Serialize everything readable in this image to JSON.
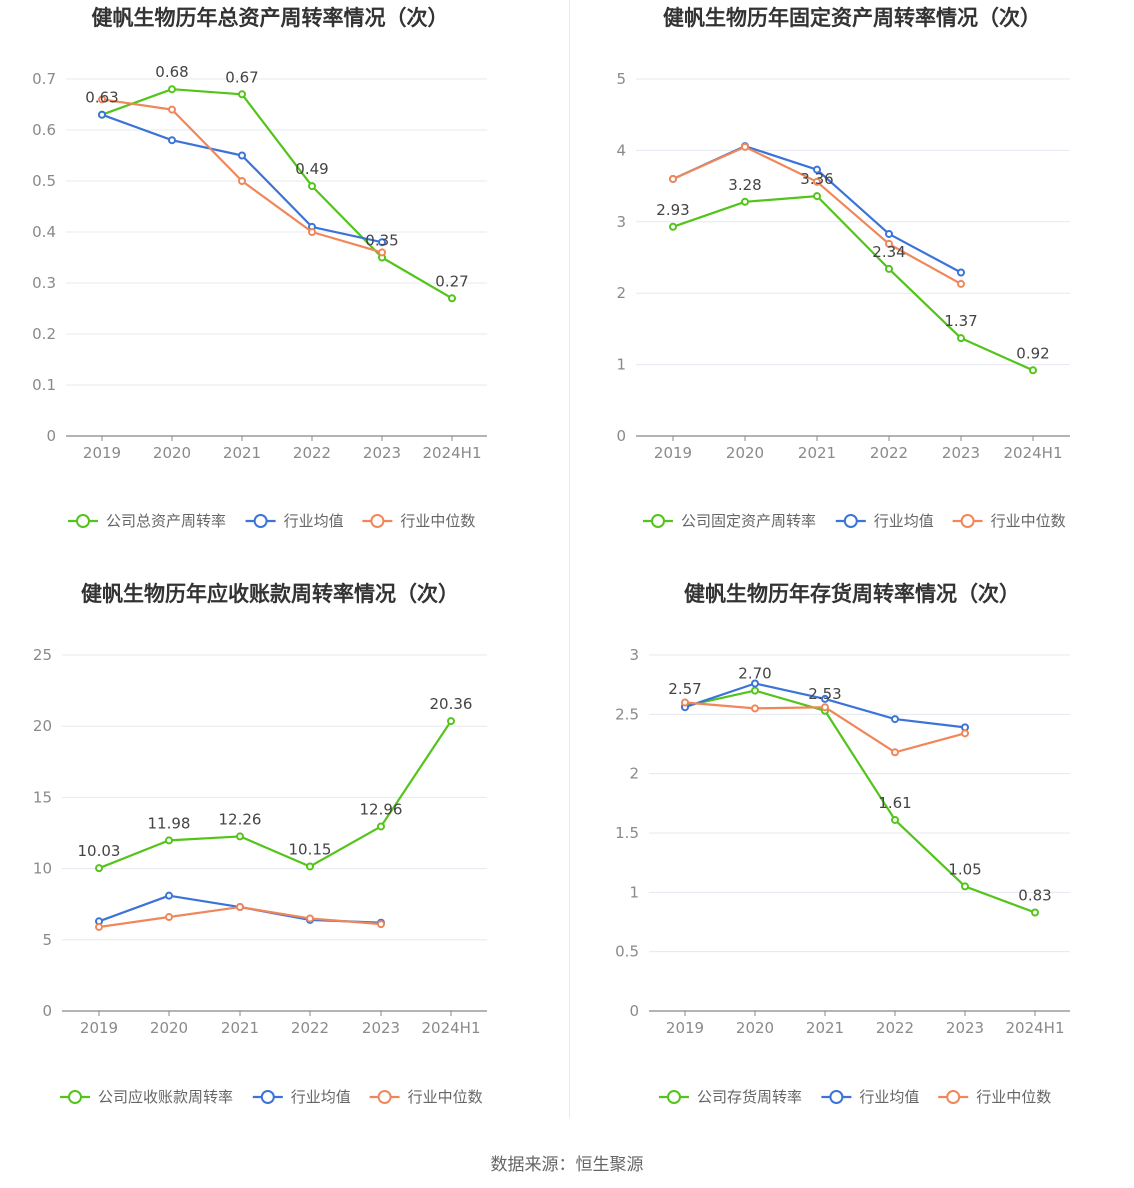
{
  "source": "数据来源：恒生聚源",
  "chart_data": [
    {
      "type": "line",
      "title": "健帆生物历年总资产周转率情况（次）",
      "categories": [
        "2019",
        "2020",
        "2021",
        "2022",
        "2023",
        "2024H1"
      ],
      "yticks": [
        "0",
        "0.1",
        "0.2",
        "0.3",
        "0.4",
        "0.5",
        "0.6",
        "0.7"
      ],
      "ylim": [
        0,
        0.7
      ],
      "series": [
        {
          "name": "公司总资产周转率",
          "color": "#52c41a",
          "values": [
            0.63,
            0.68,
            0.67,
            0.49,
            0.35,
            0.27
          ],
          "labels": [
            "0.63",
            "0.68",
            "0.67",
            "0.49",
            "0.35",
            "0.27"
          ]
        },
        {
          "name": "行业均值",
          "color": "#3b73d9",
          "values": [
            0.63,
            0.58,
            0.55,
            0.41,
            0.38,
            null
          ]
        },
        {
          "name": "行业中位数",
          "color": "#f0875a",
          "values": [
            0.66,
            0.64,
            0.5,
            0.4,
            0.36,
            null
          ]
        }
      ]
    },
    {
      "type": "line",
      "title": "健帆生物历年固定资产周转率情况（次）",
      "categories": [
        "2019",
        "2020",
        "2021",
        "2022",
        "2023",
        "2024H1"
      ],
      "yticks": [
        "0",
        "1",
        "2",
        "3",
        "4",
        "5"
      ],
      "ylim": [
        0,
        5
      ],
      "series": [
        {
          "name": "公司固定资产周转率",
          "color": "#52c41a",
          "values": [
            2.93,
            3.28,
            3.36,
            2.34,
            1.37,
            0.92
          ],
          "labels": [
            "2.93",
            "3.28",
            "3.36",
            "2.34",
            "1.37",
            "0.92"
          ]
        },
        {
          "name": "行业均值",
          "color": "#3b73d9",
          "values": [
            3.6,
            4.06,
            3.73,
            2.83,
            2.29,
            null
          ]
        },
        {
          "name": "行业中位数",
          "color": "#f0875a",
          "values": [
            3.6,
            4.05,
            3.56,
            2.69,
            2.13,
            null
          ]
        }
      ]
    },
    {
      "type": "line",
      "title": "健帆生物历年应收账款周转率情况（次）",
      "categories": [
        "2019",
        "2020",
        "2021",
        "2022",
        "2023",
        "2024H1"
      ],
      "yticks": [
        "0",
        "5",
        "10",
        "15",
        "20",
        "25"
      ],
      "ylim": [
        0,
        25
      ],
      "series": [
        {
          "name": "公司应收账款周转率",
          "color": "#52c41a",
          "values": [
            10.03,
            11.98,
            12.26,
            10.15,
            12.96,
            20.36
          ],
          "labels": [
            "10.03",
            "11.98",
            "12.26",
            "10.15",
            "12.96",
            "20.36"
          ]
        },
        {
          "name": "行业均值",
          "color": "#3b73d9",
          "values": [
            6.3,
            8.1,
            7.3,
            6.4,
            6.2,
            null
          ]
        },
        {
          "name": "行业中位数",
          "color": "#f0875a",
          "values": [
            5.9,
            6.6,
            7.3,
            6.5,
            6.1,
            null
          ]
        }
      ]
    },
    {
      "type": "line",
      "title": "健帆生物历年存货周转率情况（次）",
      "categories": [
        "2019",
        "2020",
        "2021",
        "2022",
        "2023",
        "2024H1"
      ],
      "yticks": [
        "0",
        "0.5",
        "1",
        "1.5",
        "2",
        "2.5",
        "3"
      ],
      "ylim": [
        0,
        3
      ],
      "series": [
        {
          "name": "公司存货周转率",
          "color": "#52c41a",
          "values": [
            2.57,
            2.7,
            2.53,
            1.61,
            1.05,
            0.83
          ],
          "labels": [
            "2.57",
            "2.70",
            "2.53",
            "1.61",
            "1.05",
            "0.83"
          ]
        },
        {
          "name": "行业均值",
          "color": "#3b73d9",
          "values": [
            2.56,
            2.76,
            2.63,
            2.46,
            2.39,
            null
          ]
        },
        {
          "name": "行业中位数",
          "color": "#f0875a",
          "values": [
            2.6,
            2.55,
            2.56,
            2.18,
            2.34,
            null
          ]
        }
      ]
    }
  ]
}
